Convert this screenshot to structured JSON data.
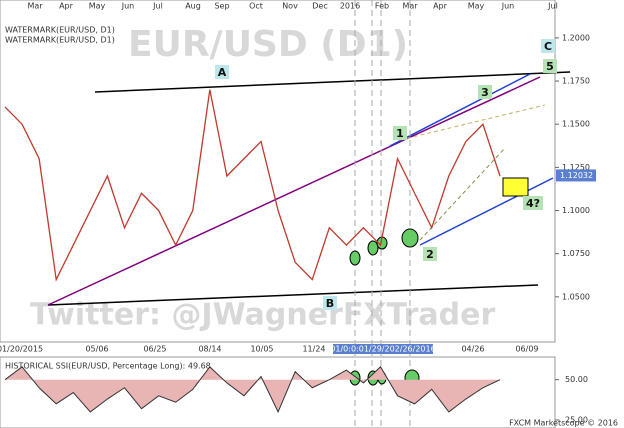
{
  "chart_data": {
    "type": "line",
    "watermark_lines": [
      "WATERMARK(EUR/USD, D1)",
      "WATERMARK(EUR/USD, D1)"
    ],
    "title": "EUR/USD (D1)",
    "subtitle": "Twitter: @JWagnerFXTrader",
    "top_axis_labels": [
      "Mar",
      "Apr",
      "May",
      "Jun",
      "Jul",
      "Aug",
      "Sep",
      "Oct",
      "Nov",
      "Dec",
      "2016",
      "Feb",
      "Mar",
      "Apr",
      "May",
      "Jun",
      "Jul"
    ],
    "bottom_axis_labels": [
      "01/20/2015",
      "05/06",
      "06/25",
      "08/14",
      "10/05",
      "11/24",
      "01/0:0:01/29/202/26/2016",
      "04/26",
      "06/09"
    ],
    "annotations": [
      "A",
      "B",
      "C",
      "1",
      "2",
      "3",
      "4?",
      "5"
    ],
    "series": [
      {
        "name": "EUR/USD",
        "color": "#c0392b",
        "values": [
          1.16,
          1.15,
          1.13,
          1.06,
          1.08,
          1.1,
          1.12,
          1.09,
          1.11,
          1.1,
          1.08,
          1.1,
          1.17,
          1.12,
          1.13,
          1.14,
          1.1,
          1.07,
          1.06,
          1.09,
          1.08,
          1.09,
          1.08,
          1.13,
          1.11,
          1.09,
          1.12,
          1.14,
          1.15,
          1.12
        ]
      }
    ],
    "ylim": [
      1.025,
      1.215
    ],
    "yticks": [
      {
        "value": 1.2,
        "label": "1.2000"
      },
      {
        "value": 1.175,
        "label": "1.1750"
      },
      {
        "value": 1.15,
        "label": "1.1500"
      },
      {
        "value": 1.125,
        "label": "1.1250"
      },
      {
        "value": 1.1,
        "label": "1.1000"
      },
      {
        "value": 1.075,
        "label": "1.0750"
      },
      {
        "value": 1.05,
        "label": "1.0500"
      }
    ],
    "last_price": {
      "value": 1.12032,
      "label": "1.12032"
    },
    "ssi": {
      "title": "HISTORICAL SSI(EUR/USD, Percentage Long): 49.68",
      "color": "#333333",
      "values": [
        50,
        58,
        45,
        35,
        42,
        30,
        38,
        45,
        32,
        40,
        36,
        44,
        58,
        48,
        40,
        52,
        30,
        55,
        45,
        50,
        56,
        48,
        58,
        40,
        35,
        44,
        30,
        38,
        45,
        50
      ],
      "ylim": [
        20,
        61
      ],
      "yticks": [
        {
          "value": 50,
          "label": "50.00"
        },
        {
          "value": 25,
          "label": "25.00"
        }
      ]
    },
    "footer": "FXCM Marketscope © 2016"
  }
}
